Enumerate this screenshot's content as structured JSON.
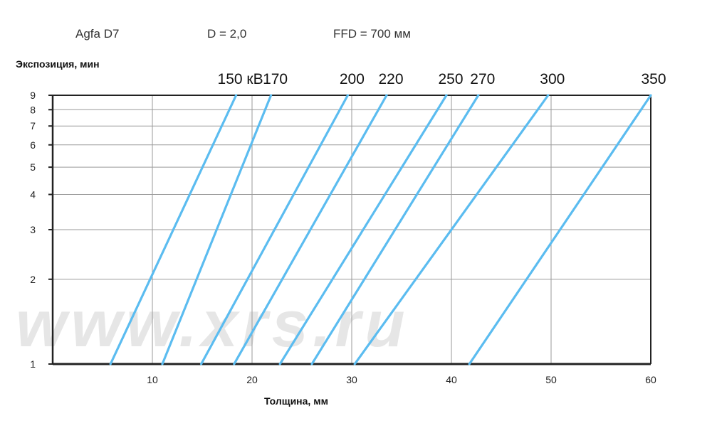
{
  "header": {
    "film": "Agfa D7",
    "density": "D = 2,0",
    "ffd": "FFD = 700 мм"
  },
  "watermark": "www.xrs.ru",
  "colors": {
    "line": "#5bbcf0",
    "grid": "#9a9a9a",
    "axis": "#222222"
  },
  "chart_data": {
    "type": "line",
    "title": "",
    "ylabel": "Экспозиция, мин",
    "xlabel": "Толщина, мм",
    "yscale": "log",
    "xlim": [
      0,
      60
    ],
    "ylim": [
      1,
      9
    ],
    "xticks": [
      10,
      20,
      30,
      40,
      50,
      60
    ],
    "yticks": [
      1,
      2,
      3,
      4,
      5,
      6,
      7,
      8,
      9
    ],
    "grid": true,
    "series": [
      {
        "name": "150 кВ",
        "x": [
          5.8,
          18.4
        ],
        "y": [
          1,
          9
        ]
      },
      {
        "name": "170",
        "x": [
          11.0,
          21.9
        ],
        "y": [
          1,
          9
        ]
      },
      {
        "name": "200",
        "x": [
          14.9,
          29.6
        ],
        "y": [
          1,
          9
        ]
      },
      {
        "name": "220",
        "x": [
          18.2,
          33.5
        ],
        "y": [
          1,
          9
        ]
      },
      {
        "name": "250",
        "x": [
          22.8,
          39.5
        ],
        "y": [
          1,
          9
        ]
      },
      {
        "name": "270",
        "x": [
          26.0,
          42.7
        ],
        "y": [
          1,
          9
        ]
      },
      {
        "name": "300",
        "x": [
          30.3,
          49.7
        ],
        "y": [
          1,
          9
        ]
      },
      {
        "name": "350",
        "x": [
          41.8,
          60.0
        ],
        "y": [
          1,
          9
        ]
      }
    ]
  }
}
